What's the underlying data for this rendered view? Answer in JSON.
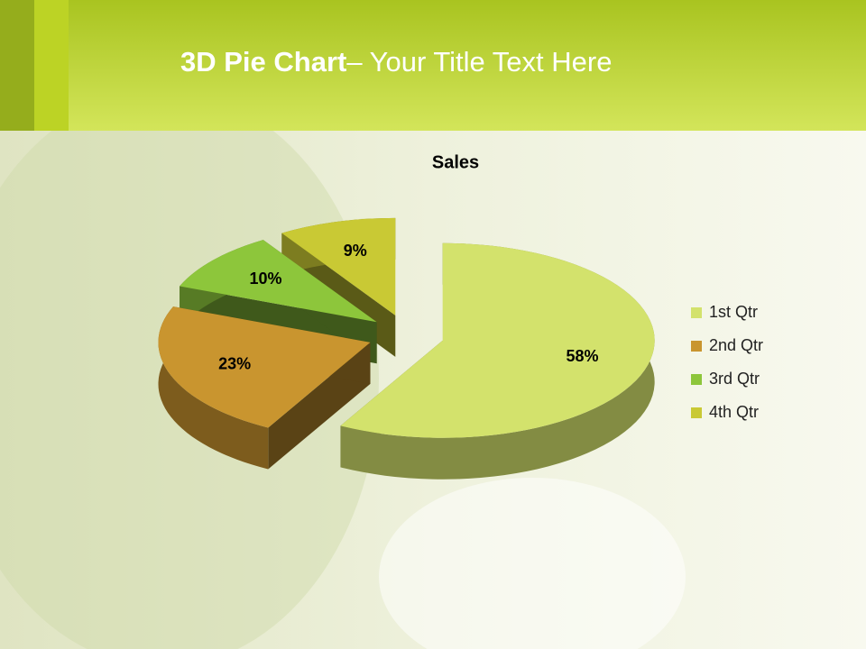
{
  "slide": {
    "title_bold": "3D Pie Chart",
    "title_rest": "– Your Title Text Here"
  },
  "chart_data": {
    "type": "pie",
    "title": "Sales",
    "categories": [
      "1st Qtr",
      "2nd Qtr",
      "3rd Qtr",
      "4th Qtr"
    ],
    "values": [
      58,
      23,
      10,
      9
    ],
    "value_labels": [
      "58%",
      "23%",
      "10%",
      "9%"
    ],
    "colors": [
      "#d3e26c",
      "#c9952f",
      "#8dc63b",
      "#c9c934"
    ],
    "legend": "right"
  }
}
